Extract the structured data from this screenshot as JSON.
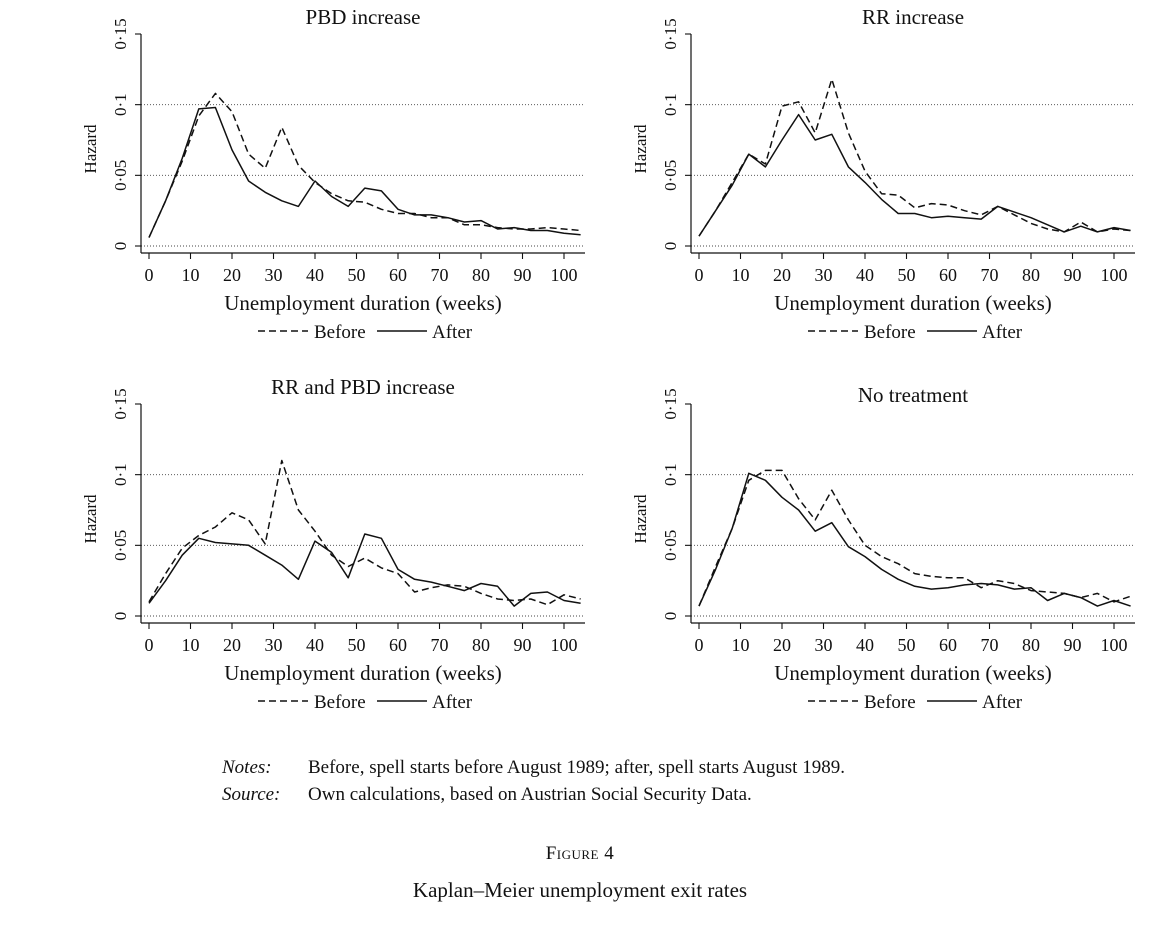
{
  "chart_data": [
    {
      "type": "line",
      "title": "PBD increase",
      "xlabel": "Unemployment duration (weeks)",
      "ylabel": "Hazard",
      "xlim": [
        0,
        104
      ],
      "ylim": [
        0,
        0.15
      ],
      "xticks": [
        "0",
        "10",
        "20",
        "30",
        "40",
        "50",
        "60",
        "70",
        "80",
        "90",
        "100"
      ],
      "yticks": [
        "0",
        "0·05",
        "0·1",
        "0·15"
      ],
      "grid": "horizontal dotted at 0.05 and 0.1",
      "legend_placement": "bottom",
      "series": [
        {
          "name": "Before",
          "style": "dashed",
          "x": [
            0,
            4,
            8,
            12,
            16,
            20,
            24,
            28,
            32,
            36,
            40,
            44,
            48,
            52,
            56,
            60,
            64,
            68,
            72,
            76,
            80,
            84,
            88,
            92,
            96,
            100,
            104
          ],
          "y": [
            0.006,
            0.032,
            0.06,
            0.092,
            0.108,
            0.095,
            0.065,
            0.055,
            0.084,
            0.057,
            0.045,
            0.037,
            0.032,
            0.031,
            0.026,
            0.023,
            0.023,
            0.02,
            0.02,
            0.015,
            0.015,
            0.013,
            0.012,
            0.012,
            0.013,
            0.012,
            0.011
          ]
        },
        {
          "name": "After",
          "style": "solid",
          "x": [
            0,
            4,
            8,
            12,
            16,
            20,
            24,
            28,
            32,
            36,
            40,
            44,
            48,
            52,
            56,
            60,
            64,
            68,
            72,
            76,
            80,
            84,
            88,
            92,
            96,
            100,
            104
          ],
          "y": [
            0.006,
            0.032,
            0.062,
            0.097,
            0.098,
            0.068,
            0.046,
            0.038,
            0.032,
            0.028,
            0.046,
            0.035,
            0.028,
            0.041,
            0.039,
            0.026,
            0.022,
            0.022,
            0.02,
            0.017,
            0.018,
            0.012,
            0.013,
            0.011,
            0.011,
            0.009,
            0.008
          ]
        }
      ]
    },
    {
      "type": "line",
      "title": "RR increase",
      "xlabel": "Unemployment duration (weeks)",
      "ylabel": "Hazard",
      "xlim": [
        0,
        104
      ],
      "ylim": [
        0,
        0.15
      ],
      "xticks": [
        "0",
        "10",
        "20",
        "30",
        "40",
        "50",
        "60",
        "70",
        "80",
        "90",
        "100"
      ],
      "yticks": [
        "0",
        "0·05",
        "0·1",
        "0·15"
      ],
      "grid": "horizontal dotted at 0.05 and 0.1",
      "legend_placement": "bottom",
      "series": [
        {
          "name": "Before",
          "style": "dashed",
          "x": [
            0,
            4,
            8,
            12,
            16,
            20,
            24,
            28,
            32,
            36,
            40,
            44,
            48,
            52,
            56,
            60,
            64,
            68,
            72,
            76,
            80,
            84,
            88,
            92,
            96,
            100,
            104
          ],
          "y": [
            0.007,
            0.025,
            0.045,
            0.065,
            0.058,
            0.099,
            0.102,
            0.08,
            0.118,
            0.08,
            0.053,
            0.037,
            0.036,
            0.027,
            0.03,
            0.029,
            0.025,
            0.022,
            0.028,
            0.022,
            0.016,
            0.012,
            0.01,
            0.017,
            0.01,
            0.012,
            0.011
          ]
        },
        {
          "name": "After",
          "style": "solid",
          "x": [
            0,
            4,
            8,
            12,
            16,
            20,
            24,
            28,
            32,
            36,
            40,
            44,
            48,
            52,
            56,
            60,
            64,
            68,
            72,
            76,
            80,
            84,
            88,
            92,
            96,
            100,
            104
          ],
          "y": [
            0.007,
            0.025,
            0.043,
            0.065,
            0.056,
            0.075,
            0.093,
            0.075,
            0.079,
            0.056,
            0.045,
            0.033,
            0.023,
            0.023,
            0.02,
            0.021,
            0.02,
            0.019,
            0.028,
            0.024,
            0.02,
            0.015,
            0.01,
            0.014,
            0.01,
            0.013,
            0.011
          ]
        }
      ]
    },
    {
      "type": "line",
      "title": "RR and PBD increase",
      "xlabel": "Unemployment duration (weeks)",
      "ylabel": "Hazard",
      "xlim": [
        0,
        104
      ],
      "ylim": [
        0,
        0.15
      ],
      "xticks": [
        "0",
        "10",
        "20",
        "30",
        "40",
        "50",
        "60",
        "70",
        "80",
        "90",
        "100"
      ],
      "yticks": [
        "0",
        "0·05",
        "0·1",
        "0·15"
      ],
      "grid": "horizontal dotted at 0.05 and 0.1",
      "legend_placement": "bottom",
      "series": [
        {
          "name": "Before",
          "style": "dashed",
          "x": [
            0,
            4,
            8,
            12,
            16,
            20,
            24,
            28,
            32,
            36,
            40,
            44,
            48,
            52,
            56,
            60,
            64,
            68,
            72,
            76,
            80,
            84,
            88,
            92,
            96,
            100,
            104
          ],
          "y": [
            0.01,
            0.03,
            0.048,
            0.057,
            0.063,
            0.073,
            0.068,
            0.051,
            0.11,
            0.075,
            0.06,
            0.043,
            0.035,
            0.041,
            0.034,
            0.03,
            0.017,
            0.02,
            0.022,
            0.021,
            0.016,
            0.012,
            0.011,
            0.012,
            0.008,
            0.015,
            0.012
          ]
        },
        {
          "name": "After",
          "style": "solid",
          "x": [
            0,
            4,
            8,
            12,
            16,
            20,
            24,
            28,
            32,
            36,
            40,
            44,
            48,
            52,
            56,
            60,
            64,
            68,
            72,
            76,
            80,
            84,
            88,
            92,
            96,
            100,
            104
          ],
          "y": [
            0.009,
            0.025,
            0.043,
            0.055,
            0.052,
            0.051,
            0.05,
            0.043,
            0.036,
            0.026,
            0.053,
            0.045,
            0.027,
            0.058,
            0.055,
            0.033,
            0.026,
            0.024,
            0.021,
            0.018,
            0.023,
            0.021,
            0.007,
            0.016,
            0.017,
            0.011,
            0.009
          ]
        }
      ]
    },
    {
      "type": "line",
      "title": "No treatment",
      "xlabel": "Unemployment duration (weeks)",
      "ylabel": "Hazard",
      "xlim": [
        0,
        104
      ],
      "ylim": [
        0,
        0.15
      ],
      "xticks": [
        "0",
        "10",
        "20",
        "30",
        "40",
        "50",
        "60",
        "70",
        "80",
        "90",
        "100"
      ],
      "yticks": [
        "0",
        "0·05",
        "0·1",
        "0·15"
      ],
      "grid": "horizontal dotted at 0.05 and 0.1",
      "legend_placement": "bottom",
      "series": [
        {
          "name": "Before",
          "style": "dashed",
          "x": [
            0,
            4,
            8,
            12,
            16,
            20,
            24,
            28,
            32,
            36,
            40,
            44,
            48,
            52,
            56,
            60,
            64,
            68,
            72,
            76,
            80,
            84,
            88,
            92,
            96,
            100,
            104
          ],
          "y": [
            0.007,
            0.035,
            0.062,
            0.096,
            0.103,
            0.103,
            0.083,
            0.068,
            0.089,
            0.068,
            0.05,
            0.042,
            0.037,
            0.03,
            0.028,
            0.027,
            0.027,
            0.02,
            0.025,
            0.023,
            0.018,
            0.017,
            0.016,
            0.013,
            0.016,
            0.01,
            0.014
          ]
        },
        {
          "name": "After",
          "style": "solid",
          "x": [
            0,
            4,
            8,
            12,
            16,
            20,
            24,
            28,
            32,
            36,
            40,
            44,
            48,
            52,
            56,
            60,
            64,
            68,
            72,
            76,
            80,
            84,
            88,
            92,
            96,
            100,
            104
          ],
          "y": [
            0.007,
            0.033,
            0.062,
            0.101,
            0.096,
            0.084,
            0.075,
            0.06,
            0.066,
            0.049,
            0.042,
            0.033,
            0.026,
            0.021,
            0.019,
            0.02,
            0.022,
            0.023,
            0.022,
            0.019,
            0.02,
            0.011,
            0.016,
            0.013,
            0.007,
            0.011,
            0.007
          ]
        }
      ]
    }
  ],
  "notes": {
    "label": "Notes:",
    "text": "Before, spell starts before August 1989; after, spell starts August 1989."
  },
  "source": {
    "label": "Source:",
    "text": "Own calculations, based on Austrian Social Security Data."
  },
  "figure": {
    "label": "Figure 4",
    "caption": "Kaplan–Meier unemployment exit rates"
  }
}
